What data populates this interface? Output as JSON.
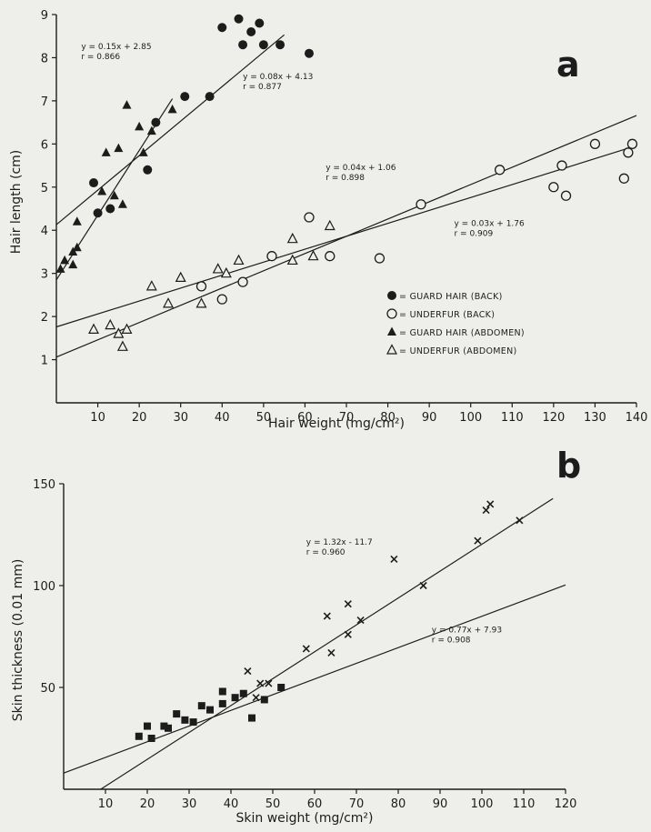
{
  "figure": {
    "colors": {
      "ink": "#1c1c1c",
      "paper": "#eeeeea"
    }
  },
  "chart_data": [
    {
      "type": "scatter",
      "panel_label": "a",
      "xlabel": "Hair weight (mg/cm²)",
      "ylabel": "Hair length (cm)",
      "xlim": [
        0,
        140
      ],
      "ylim": [
        0,
        9
      ],
      "x_ticks": [
        "10",
        "20",
        "30",
        "40",
        "50",
        "60",
        "70",
        "80",
        "90",
        "100",
        "110",
        "120",
        "130",
        "140"
      ],
      "y_ticks": [
        "1",
        "2",
        "3",
        "4",
        "5",
        "6",
        "7",
        "8",
        "9"
      ],
      "legend_position": "lower-right",
      "series": [
        {
          "name": "= GUARD HAIR (BACK)",
          "marker": "filled-circle",
          "points": [
            [
              9,
              5.1
            ],
            [
              10,
              4.4
            ],
            [
              13,
              4.5
            ],
            [
              22,
              5.4
            ],
            [
              24,
              6.5
            ],
            [
              31,
              7.1
            ],
            [
              37,
              7.1
            ],
            [
              40,
              8.7
            ],
            [
              44,
              8.9
            ],
            [
              45,
              8.3
            ],
            [
              47,
              8.6
            ],
            [
              49,
              8.8
            ],
            [
              50,
              8.3
            ],
            [
              54,
              8.3
            ],
            [
              61,
              8.1
            ]
          ]
        },
        {
          "name": "= UNDERFUR (BACK)",
          "marker": "open-circle",
          "points": [
            [
              35,
              2.7
            ],
            [
              40,
              2.4
            ],
            [
              45,
              2.8
            ],
            [
              52,
              3.4
            ],
            [
              61,
              4.3
            ],
            [
              66,
              3.4
            ],
            [
              78,
              3.35
            ],
            [
              88,
              4.6
            ],
            [
              107,
              5.4
            ],
            [
              120,
              5.0
            ],
            [
              122,
              5.5
            ],
            [
              123,
              4.8
            ],
            [
              130,
              6.0
            ],
            [
              137,
              5.2
            ],
            [
              138,
              5.8
            ],
            [
              139,
              6.0
            ]
          ]
        },
        {
          "name": "= GUARD HAIR (ABDOMEN)",
          "marker": "filled-triangle",
          "points": [
            [
              1,
              3.1
            ],
            [
              2,
              3.3
            ],
            [
              4,
              3.2
            ],
            [
              4,
              3.5
            ],
            [
              5,
              3.6
            ],
            [
              5,
              4.2
            ],
            [
              11,
              4.9
            ],
            [
              12,
              5.8
            ],
            [
              14,
              4.8
            ],
            [
              15,
              5.9
            ],
            [
              16,
              4.6
            ],
            [
              17,
              6.9
            ],
            [
              20,
              6.4
            ],
            [
              21,
              5.8
            ],
            [
              23,
              6.3
            ],
            [
              28,
              6.8
            ]
          ]
        },
        {
          "name": "= UNDERFUR (ABDOMEN)",
          "marker": "open-triangle",
          "points": [
            [
              9,
              1.7
            ],
            [
              13,
              1.8
            ],
            [
              15,
              1.6
            ],
            [
              16,
              1.3
            ],
            [
              17,
              1.7
            ],
            [
              23,
              2.7
            ],
            [
              27,
              2.3
            ],
            [
              30,
              2.9
            ],
            [
              35,
              2.3
            ],
            [
              39,
              3.1
            ],
            [
              41,
              3.0
            ],
            [
              44,
              3.3
            ],
            [
              57,
              3.3
            ],
            [
              57,
              3.8
            ],
            [
              62,
              3.4
            ],
            [
              66,
              4.1
            ]
          ]
        }
      ],
      "regressions": [
        {
          "equation": "y = 0.15x + 2.85",
          "r": "r = 0.866",
          "slope": 0.15,
          "intercept": 2.85,
          "x_range": [
            0,
            28
          ],
          "label_at": [
            6,
            8.2
          ]
        },
        {
          "equation": "y = 0.08x + 4.13",
          "r": "r = 0.877",
          "slope": 0.08,
          "intercept": 4.13,
          "x_range": [
            0,
            55
          ],
          "label_at": [
            45,
            7.5
          ]
        },
        {
          "equation": "y = 0.04x + 1.06",
          "r": "r = 0.898",
          "slope": 0.04,
          "intercept": 1.06,
          "x_range": [
            0,
            140
          ],
          "label_at": [
            65,
            5.4
          ]
        },
        {
          "equation": "y = 0.03x + 1.76",
          "r": "r = 0.909",
          "slope": 0.03,
          "intercept": 1.76,
          "x_range": [
            0,
            140
          ],
          "label_at": [
            96,
            4.1
          ]
        }
      ]
    },
    {
      "type": "scatter",
      "panel_label": "b",
      "xlabel": "Skin weight (mg/cm²)",
      "ylabel": "Skin thickness (0.01 mm)",
      "xlim": [
        0,
        120
      ],
      "ylim": [
        0,
        150
      ],
      "x_ticks": [
        "10",
        "20",
        "30",
        "40",
        "50",
        "60",
        "70",
        "80",
        "90",
        "100",
        "110",
        "120"
      ],
      "y_ticks": [
        "50",
        "100",
        "150"
      ],
      "series": [
        {
          "marker": "filled-square",
          "points": [
            [
              18,
              26
            ],
            [
              20,
              31
            ],
            [
              21,
              25
            ],
            [
              24,
              31
            ],
            [
              25,
              30
            ],
            [
              27,
              37
            ],
            [
              29,
              34
            ],
            [
              31,
              33
            ],
            [
              33,
              41
            ],
            [
              35,
              39
            ],
            [
              38,
              48
            ],
            [
              38,
              42
            ],
            [
              41,
              45
            ],
            [
              43,
              47
            ],
            [
              45,
              35
            ],
            [
              48,
              44
            ],
            [
              52,
              50
            ]
          ]
        },
        {
          "marker": "cross",
          "points": [
            [
              44,
              58
            ],
            [
              46,
              45
            ],
            [
              47,
              52
            ],
            [
              49,
              52
            ],
            [
              58,
              69
            ],
            [
              63,
              85
            ],
            [
              64,
              67
            ],
            [
              68,
              91
            ],
            [
              68,
              76
            ],
            [
              71,
              83
            ],
            [
              79,
              113
            ],
            [
              86,
              100
            ],
            [
              99,
              122
            ],
            [
              101,
              137
            ],
            [
              102,
              140
            ],
            [
              109,
              132
            ]
          ]
        }
      ],
      "regressions": [
        {
          "equation": "y = 1.32x - 11.7",
          "r": "r = 0.960",
          "slope": 1.32,
          "intercept": -11.7,
          "x_range": [
            8.9,
            117
          ],
          "label_at": [
            58,
            120
          ]
        },
        {
          "equation": "y = 0.77x + 7.93",
          "r": "r = 0.908",
          "slope": 0.77,
          "intercept": 7.93,
          "x_range": [
            0,
            120
          ],
          "label_at": [
            88,
            77
          ]
        }
      ]
    }
  ]
}
